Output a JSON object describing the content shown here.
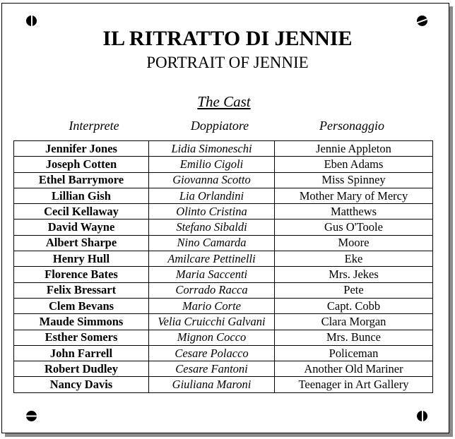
{
  "title": "IL RITRATTO DI JENNIE",
  "subtitle": "PORTRAIT OF JENNIE",
  "section": "The Cast",
  "headers": {
    "actor": "Interprete",
    "dubber": "Doppiatore",
    "character": "Personaggio"
  },
  "rows": [
    {
      "actor": "Jennifer Jones",
      "dubber": "Lidia Simoneschi",
      "character": "Jennie Appleton"
    },
    {
      "actor": "Joseph Cotten",
      "dubber": "Emilio Cigoli",
      "character": "Eben Adams"
    },
    {
      "actor": "Ethel Barrymore",
      "dubber": "Giovanna Scotto",
      "character": "Miss Spinney"
    },
    {
      "actor": "Lillian Gish",
      "dubber": "Lia Orlandini",
      "character": "Mother Mary of Mercy"
    },
    {
      "actor": "Cecil Kellaway",
      "dubber": "Olinto Cristina",
      "character": "Matthews"
    },
    {
      "actor": "David Wayne",
      "dubber": "Stefano Sibaldi",
      "character": "Gus O'Toole"
    },
    {
      "actor": "Albert Sharpe",
      "dubber": "Nino Camarda",
      "character": "Moore"
    },
    {
      "actor": "Henry Hull",
      "dubber": "Amilcare Pettinelli",
      "character": "Eke"
    },
    {
      "actor": "Florence Bates",
      "dubber": "Maria Saccenti",
      "character": "Mrs. Jekes"
    },
    {
      "actor": "Felix Bressart",
      "dubber": "Corrado Racca",
      "character": "Pete"
    },
    {
      "actor": "Clem Bevans",
      "dubber": "Mario Corte",
      "character": "Capt. Cobb"
    },
    {
      "actor": "Maude Simmons",
      "dubber": "Velia Cruicchi Galvani",
      "character": "Clara Morgan"
    },
    {
      "actor": "Esther Somers",
      "dubber": "Mignon Cocco",
      "character": "Mrs. Bunce"
    },
    {
      "actor": "John Farrell",
      "dubber": "Cesare Polacco",
      "character": "Policeman"
    },
    {
      "actor": "Robert Dudley",
      "dubber": "Cesare Fantoni",
      "character": "Another Old Mariner"
    },
    {
      "actor": "Nancy Davis",
      "dubber": "Giuliana Maroni",
      "character": "Teenager in Art Gallery"
    }
  ]
}
